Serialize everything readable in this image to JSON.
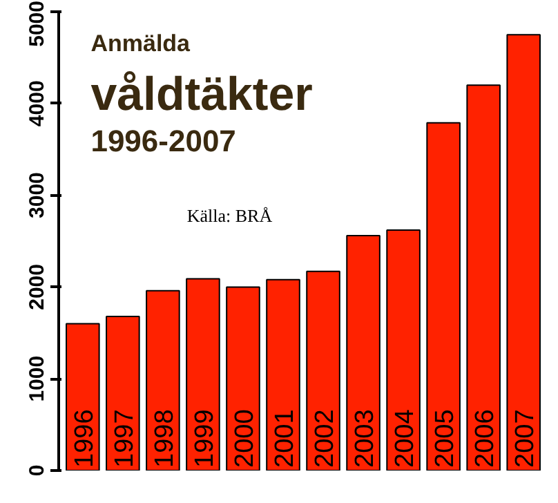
{
  "chart_data": {
    "type": "bar",
    "title": "Anmälda\nvåldtäkter\n1996-2007",
    "categories": [
      "1996",
      "1997",
      "1998",
      "1999",
      "2000",
      "2001",
      "2002",
      "2003",
      "2004",
      "2005",
      "2006",
      "2007"
    ],
    "values": [
      1600,
      1680,
      1960,
      2090,
      2000,
      2080,
      2170,
      2560,
      2620,
      3790,
      4200,
      4750
    ],
    "color": "#ff2200",
    "ylim": [
      0,
      5000
    ],
    "yticks": [
      0,
      1000,
      2000,
      3000,
      4000,
      5000
    ],
    "grid": false,
    "annotations": [
      "Källa: BRÅ"
    ]
  }
}
